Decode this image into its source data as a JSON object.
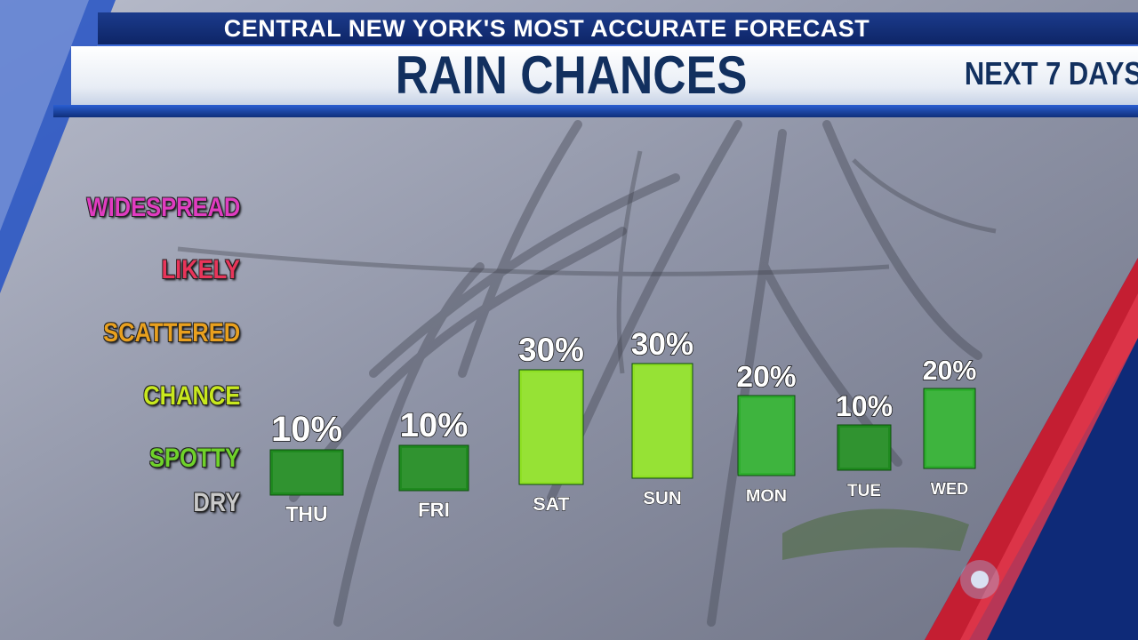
{
  "header": {
    "banner": "CENTRAL NEW YORK'S MOST ACCURATE FORECAST",
    "title": "RAIN CHANCES",
    "subtitle": "NEXT 7 DAYS"
  },
  "levels": [
    {
      "label": "WIDESPREAD",
      "color": "#e03cc0"
    },
    {
      "label": "LIKELY",
      "color": "#e8355a"
    },
    {
      "label": "SCATTERED",
      "color": "#e9a01e"
    },
    {
      "label": "CHANCE",
      "color": "#c8e81e"
    },
    {
      "label": "SPOTTY",
      "color": "#6fd22a"
    },
    {
      "label": "DRY",
      "color": "#c9c9c9"
    }
  ],
  "chart_data": {
    "type": "bar",
    "categories": [
      "THU",
      "FRI",
      "SAT",
      "SUN",
      "MON",
      "TUE",
      "WED"
    ],
    "values": [
      10,
      10,
      30,
      30,
      20,
      10,
      20
    ],
    "value_labels": [
      "10%",
      "10%",
      "30%",
      "30%",
      "20%",
      "10%",
      "20%"
    ],
    "ylim": [
      0,
      100
    ],
    "grid": false,
    "bar_colors": {
      "10": "#1f8a1f",
      "20": "#2eae2e",
      "30": "#8ee024"
    }
  }
}
